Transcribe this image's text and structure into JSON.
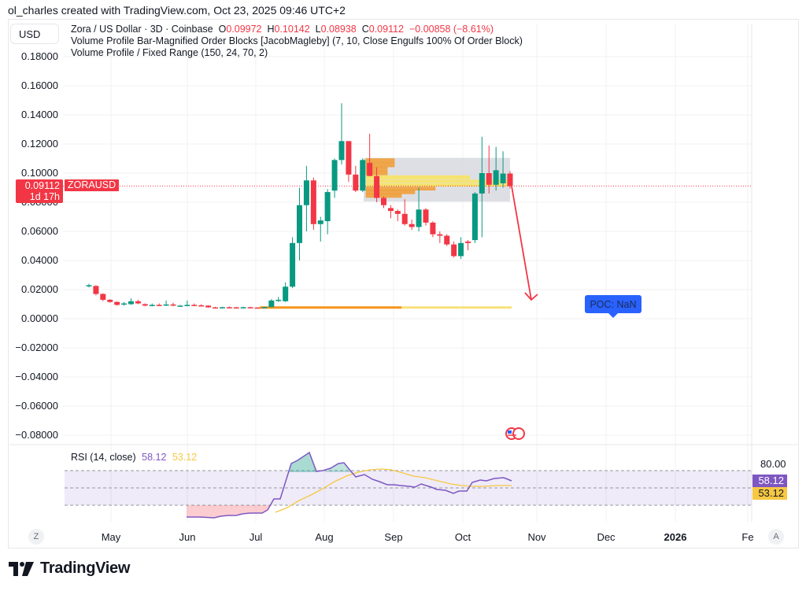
{
  "attribution": "ol_charles created with TradingView.com, Oct 23, 2025 09:46 UTC+2",
  "currency_button": "USD",
  "legend": {
    "symbol_line": "Zora / US Dollar · 3D · Coinbase",
    "open_label": "O",
    "open": "0.09972",
    "high_label": "H",
    "high": "0.10142",
    "low_label": "L",
    "low": "0.08938",
    "close_label": "C",
    "close": "0.09112",
    "change": "−0.00858 (−8.61%)",
    "indicator1": "Volume Profile Bar-Magnified Order Blocks [JacobMagleby] (7, 10, Close Engulfs 100% Of Order Block)",
    "indicator2": "Volume Profile / Fixed Range (150, 24, 70, 2)"
  },
  "price_tag": {
    "price": "0.09112",
    "countdown": "1d 17h",
    "symbol": "ZORAUSD"
  },
  "poc_label": "POC: NaN",
  "rsi": {
    "title": "RSI (14, close)",
    "value": "58.12",
    "ma_value": "53.12",
    "scale_label": "80.00"
  },
  "time_axis": {
    "labels": [
      "May",
      "Jun",
      "Jul",
      "Aug",
      "Sep",
      "Oct",
      "Nov",
      "Dec",
      "2026",
      "Fe"
    ],
    "left_button": "Z",
    "right_button": "A"
  },
  "logo_text": "TradingView",
  "colors": {
    "up": "#089981",
    "down": "#f23645",
    "rsi": "#7e57c2",
    "rsi_ma": "#f7c843",
    "order_block": "#f7931a",
    "poc_box": "#2962ff",
    "arrow": "#f23645"
  },
  "chart_data": [
    {
      "type": "candlestick",
      "title": "Zora / US Dollar · 3D · Coinbase",
      "ylabel": "USD",
      "ylim": [
        -0.08,
        0.18
      ],
      "yticks": [
        "0.18000",
        "0.16000",
        "0.14000",
        "0.12000",
        "0.10000",
        "0.08000",
        "0.06000",
        "0.04000",
        "0.02000",
        "0.00000",
        "−0.02000",
        "−0.04000",
        "−0.06000",
        "−0.08000"
      ],
      "x_ticks": [
        "May",
        "Jun",
        "Jul",
        "Aug",
        "Sep",
        "Oct",
        "Nov",
        "Dec",
        "2026",
        "Fe"
      ],
      "last_price": 0.09112,
      "candles": [
        {
          "o": 0.0225,
          "h": 0.024,
          "l": 0.0215,
          "c": 0.023
        },
        {
          "o": 0.0225,
          "h": 0.023,
          "l": 0.016,
          "c": 0.017
        },
        {
          "o": 0.017,
          "h": 0.0175,
          "l": 0.012,
          "c": 0.013
        },
        {
          "o": 0.013,
          "h": 0.0135,
          "l": 0.011,
          "c": 0.0115
        },
        {
          "o": 0.0115,
          "h": 0.012,
          "l": 0.009,
          "c": 0.0095
        },
        {
          "o": 0.01,
          "h": 0.0115,
          "l": 0.009,
          "c": 0.0105
        },
        {
          "o": 0.01,
          "h": 0.014,
          "l": 0.0095,
          "c": 0.012
        },
        {
          "o": 0.012,
          "h": 0.013,
          "l": 0.01,
          "c": 0.0105
        },
        {
          "o": 0.01,
          "h": 0.0105,
          "l": 0.0085,
          "c": 0.009
        },
        {
          "o": 0.0092,
          "h": 0.0105,
          "l": 0.0085,
          "c": 0.0095
        },
        {
          "o": 0.0095,
          "h": 0.0105,
          "l": 0.0088,
          "c": 0.0092
        },
        {
          "o": 0.0092,
          "h": 0.0125,
          "l": 0.0088,
          "c": 0.0098
        },
        {
          "o": 0.0098,
          "h": 0.011,
          "l": 0.0085,
          "c": 0.009
        },
        {
          "o": 0.0088,
          "h": 0.0095,
          "l": 0.0085,
          "c": 0.009
        },
        {
          "o": 0.009,
          "h": 0.0125,
          "l": 0.0085,
          "c": 0.0095
        },
        {
          "o": 0.0095,
          "h": 0.0105,
          "l": 0.0088,
          "c": 0.0092
        },
        {
          "o": 0.0092,
          "h": 0.01,
          "l": 0.0085,
          "c": 0.009
        },
        {
          "o": 0.009,
          "h": 0.0092,
          "l": 0.0075,
          "c": 0.0078
        },
        {
          "o": 0.0078,
          "h": 0.0082,
          "l": 0.0074,
          "c": 0.0076
        },
        {
          "o": 0.0076,
          "h": 0.0082,
          "l": 0.0074,
          "c": 0.0079
        },
        {
          "o": 0.0079,
          "h": 0.0084,
          "l": 0.0074,
          "c": 0.0078
        },
        {
          "o": 0.0078,
          "h": 0.0082,
          "l": 0.0075,
          "c": 0.0077
        },
        {
          "o": 0.0077,
          "h": 0.0082,
          "l": 0.0075,
          "c": 0.0079
        },
        {
          "o": 0.0079,
          "h": 0.0082,
          "l": 0.0075,
          "c": 0.0077
        },
        {
          "o": 0.0077,
          "h": 0.008,
          "l": 0.0073,
          "c": 0.0075
        },
        {
          "o": 0.0075,
          "h": 0.0082,
          "l": 0.0072,
          "c": 0.008
        },
        {
          "o": 0.008,
          "h": 0.0135,
          "l": 0.0078,
          "c": 0.0125
        },
        {
          "o": 0.0125,
          "h": 0.015,
          "l": 0.0115,
          "c": 0.013
        },
        {
          "o": 0.012,
          "h": 0.025,
          "l": 0.0115,
          "c": 0.022
        },
        {
          "o": 0.022,
          "h": 0.056,
          "l": 0.021,
          "c": 0.052
        },
        {
          "o": 0.052,
          "h": 0.09,
          "l": 0.04,
          "c": 0.078
        },
        {
          "o": 0.078,
          "h": 0.105,
          "l": 0.06,
          "c": 0.095
        },
        {
          "o": 0.095,
          "h": 0.097,
          "l": 0.061,
          "c": 0.065
        },
        {
          "o": 0.065,
          "h": 0.07,
          "l": 0.053,
          "c": 0.0675
        },
        {
          "o": 0.067,
          "h": 0.089,
          "l": 0.058,
          "c": 0.087
        },
        {
          "o": 0.088,
          "h": 0.11,
          "l": 0.083,
          "c": 0.109
        },
        {
          "o": 0.109,
          "h": 0.148,
          "l": 0.106,
          "c": 0.122
        },
        {
          "o": 0.122,
          "h": 0.122,
          "l": 0.094,
          "c": 0.099
        },
        {
          "o": 0.099,
          "h": 0.105,
          "l": 0.087,
          "c": 0.088
        },
        {
          "o": 0.088,
          "h": 0.11,
          "l": 0.087,
          "c": 0.109
        },
        {
          "o": 0.107,
          "h": 0.127,
          "l": 0.098,
          "c": 0.098
        },
        {
          "o": 0.098,
          "h": 0.104,
          "l": 0.08,
          "c": 0.083
        },
        {
          "o": 0.083,
          "h": 0.084,
          "l": 0.076,
          "c": 0.078
        },
        {
          "o": 0.076,
          "h": 0.078,
          "l": 0.069,
          "c": 0.074
        },
        {
          "o": 0.074,
          "h": 0.075,
          "l": 0.067,
          "c": 0.072
        },
        {
          "o": 0.072,
          "h": 0.082,
          "l": 0.064,
          "c": 0.065
        },
        {
          "o": 0.065,
          "h": 0.068,
          "l": 0.061,
          "c": 0.063
        },
        {
          "o": 0.063,
          "h": 0.09,
          "l": 0.06,
          "c": 0.075
        },
        {
          "o": 0.075,
          "h": 0.076,
          "l": 0.064,
          "c": 0.066
        },
        {
          "o": 0.066,
          "h": 0.067,
          "l": 0.056,
          "c": 0.058
        },
        {
          "o": 0.058,
          "h": 0.06,
          "l": 0.052,
          "c": 0.057
        },
        {
          "o": 0.057,
          "h": 0.058,
          "l": 0.05,
          "c": 0.051
        },
        {
          "o": 0.051,
          "h": 0.053,
          "l": 0.042,
          "c": 0.043
        },
        {
          "o": 0.043,
          "h": 0.056,
          "l": 0.041,
          "c": 0.052
        },
        {
          "o": 0.053,
          "h": 0.054,
          "l": 0.047,
          "c": 0.052
        },
        {
          "o": 0.054,
          "h": 0.087,
          "l": 0.052,
          "c": 0.086
        },
        {
          "o": 0.086,
          "h": 0.125,
          "l": 0.056,
          "c": 0.1
        },
        {
          "o": 0.1,
          "h": 0.119,
          "l": 0.086,
          "c": 0.092
        },
        {
          "o": 0.092,
          "h": 0.118,
          "l": 0.088,
          "c": 0.102
        },
        {
          "o": 0.093,
          "h": 0.115,
          "l": 0.09,
          "c": 0.0997
        },
        {
          "o": 0.09972,
          "h": 0.10142,
          "l": 0.08938,
          "c": 0.09112
        }
      ],
      "annotations": [
        {
          "type": "order_block_zone",
          "y_top": 0.11,
          "y_bottom": 0.08
        },
        {
          "type": "arrow",
          "from": 0.0911,
          "to": 0.013,
          "direction": "down"
        },
        {
          "type": "label",
          "text": "POC: NaN"
        }
      ]
    },
    {
      "type": "line",
      "title": "RSI (14, close)",
      "ylim": [
        0,
        100
      ],
      "bands": [
        30,
        50,
        70
      ],
      "yticks": [
        "80.00"
      ],
      "series": [
        {
          "name": "RSI",
          "last": 58.12
        },
        {
          "name": "RSI-based MA",
          "last": 53.12
        }
      ]
    }
  ]
}
